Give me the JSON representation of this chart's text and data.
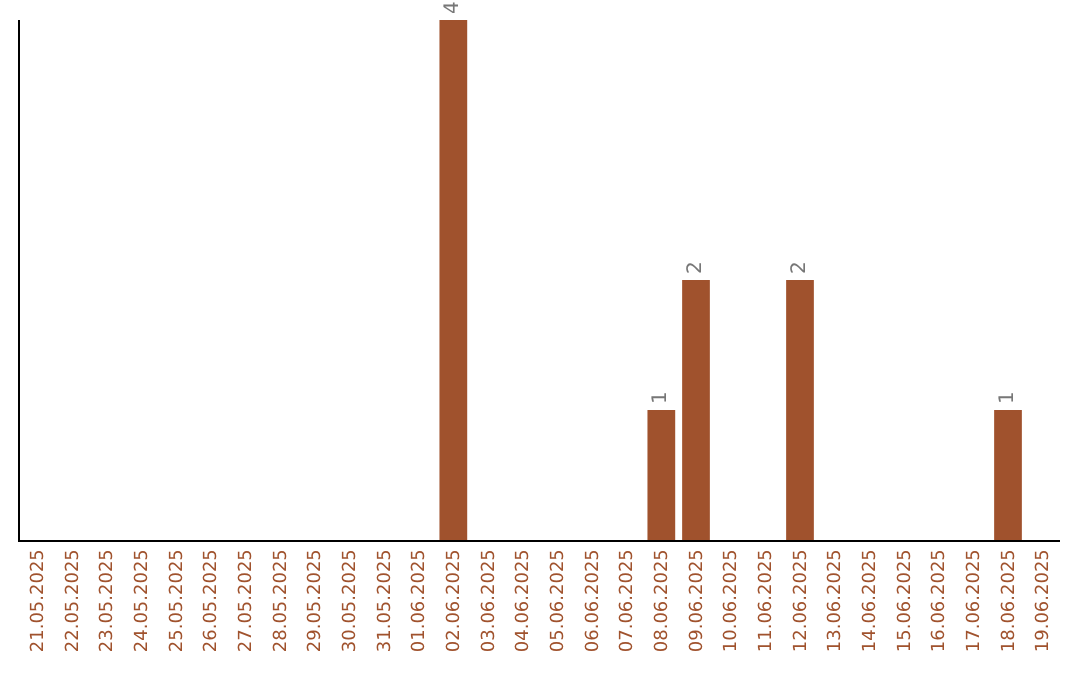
{
  "chart_data": {
    "type": "bar",
    "categories": [
      "21.05.2025",
      "22.05.2025",
      "23.05.2025",
      "24.05.2025",
      "25.05.2025",
      "26.05.2025",
      "27.05.2025",
      "28.05.2025",
      "29.05.2025",
      "30.05.2025",
      "31.05.2025",
      "01.06.2025",
      "02.06.2025",
      "03.06.2025",
      "04.06.2025",
      "05.06.2025",
      "06.06.2025",
      "07.06.2025",
      "08.06.2025",
      "09.06.2025",
      "10.06.2025",
      "11.06.2025",
      "12.06.2025",
      "13.06.2025",
      "14.06.2025",
      "15.06.2025",
      "16.06.2025",
      "17.06.2025",
      "18.06.2025",
      "19.06.2025"
    ],
    "values": [
      null,
      null,
      null,
      null,
      null,
      null,
      null,
      null,
      null,
      null,
      null,
      null,
      4,
      null,
      null,
      null,
      null,
      null,
      1,
      2,
      null,
      null,
      2,
      null,
      null,
      null,
      null,
      null,
      1,
      null
    ],
    "data_labels": true,
    "color": "#a0522d",
    "legend": false
  }
}
